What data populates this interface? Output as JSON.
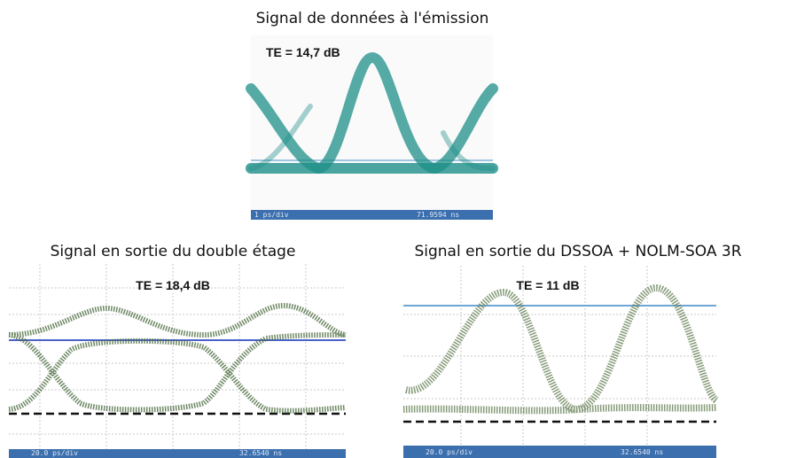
{
  "panels": [
    {
      "title": "Signal de données à l'émission",
      "te": "TE = 14,7 dB",
      "footer_left": "1 ps/div",
      "footer_right": "71.9594 ns"
    },
    {
      "title": "Signal en sortie du double étage",
      "te": "TE = 18,4 dB",
      "footer_left": "20.0 ps/div",
      "footer_right": "32.6540 ns"
    },
    {
      "title": "Signal en sortie du DSSOA + NOLM-SOA 3R",
      "te": "TE = 11 dB",
      "footer_left": "20.0 ps/div",
      "footer_right": "32.6540 ns"
    }
  ]
}
